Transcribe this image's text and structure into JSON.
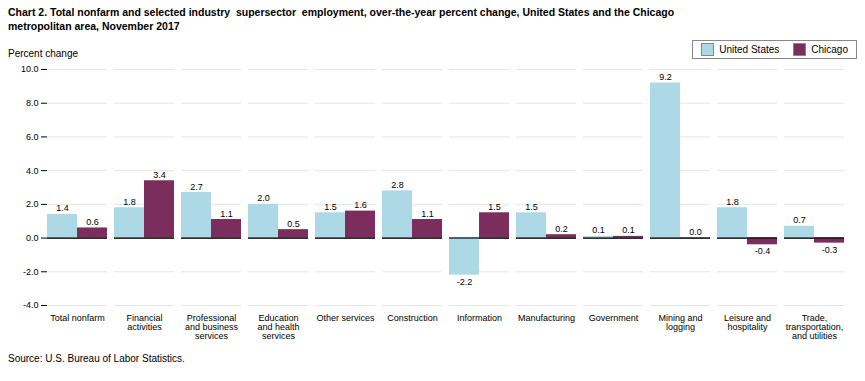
{
  "chart_data": {
    "type": "bar",
    "title": "Chart 2. Total nonfarm and selected industry  supersector  employment, over-the-year percent change, United States and the Chicago\nmetropolitan area, November 2017",
    "ylabel": "Percent change",
    "caption": "Source: U.S. Bureau of Labor Statistics.",
    "categories": [
      "Total nonfarm",
      "Financial\nactivities",
      "Professional\nand business\nservices",
      "Education\nand health\nservices",
      "Other services",
      "Construction",
      "Information",
      "Manufacturing",
      "Government",
      "Mining and\nlogging",
      "Leisure and\nhospitality",
      "Trade,\ntransportation,\nand utilities"
    ],
    "series": [
      {
        "name": "United States",
        "color": "#ADD8E6",
        "values": [
          1.4,
          1.8,
          2.7,
          2.0,
          1.5,
          2.8,
          -2.2,
          1.5,
          0.1,
          9.2,
          1.8,
          0.7
        ],
        "value_labels": [
          "1.4",
          "1.8",
          "2.7",
          "2.0",
          "1.5",
          "2.8",
          "-2.2",
          "1.5",
          "0.1",
          "9.2",
          "1.8",
          "0.7"
        ]
      },
      {
        "name": "Chicago",
        "color": "#7B2D5E",
        "values": [
          0.6,
          3.4,
          1.1,
          0.5,
          1.6,
          1.1,
          1.5,
          0.2,
          0.1,
          0.0,
          -0.4,
          -0.3
        ],
        "value_labels": [
          "0.6",
          "3.4",
          "1.1",
          "0.5",
          "1.6",
          "1.1",
          "1.5",
          "0.2",
          "0.1",
          "0.0",
          "-0.4",
          "-0.3"
        ]
      }
    ],
    "ylim": [
      -4.0,
      10.0
    ],
    "yticks": [
      {
        "value": -4,
        "label": "-4.0"
      },
      {
        "value": -2,
        "label": "-2.0"
      },
      {
        "value": 0,
        "label": "0.0"
      },
      {
        "value": 2,
        "label": "2.0"
      },
      {
        "value": 4,
        "label": "4.0"
      },
      {
        "value": 6,
        "label": "6.0"
      },
      {
        "value": 8,
        "label": "8.0"
      },
      {
        "value": 10,
        "label": "10.0"
      }
    ],
    "grid": true,
    "legend": "upper right",
    "data_labels": true
  }
}
